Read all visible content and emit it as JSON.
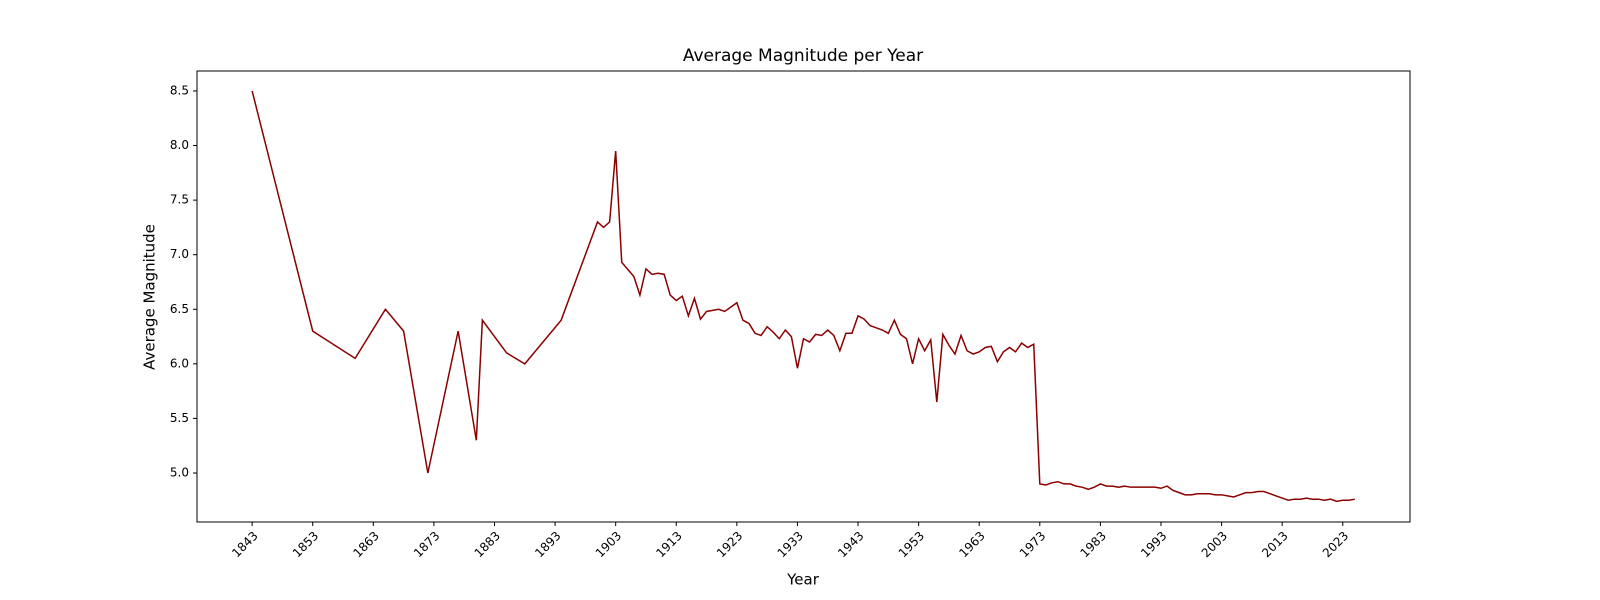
{
  "chart_data": {
    "type": "line",
    "title": "Average Magnitude per Year",
    "x_label": "Year",
    "y_label": "Average Magnitude",
    "x": [
      1843,
      1853,
      1860,
      1865,
      1868,
      1872,
      1877,
      1880,
      1881,
      1885,
      1888,
      1894,
      1900,
      1901,
      1902,
      1903,
      1904,
      1906,
      1907,
      1908,
      1909,
      1910,
      1911,
      1912,
      1913,
      1914,
      1915,
      1916,
      1917,
      1918,
      1919,
      1920,
      1921,
      1922,
      1923,
      1924,
      1925,
      1926,
      1927,
      1928,
      1929,
      1930,
      1931,
      1932,
      1933,
      1934,
      1935,
      1936,
      1937,
      1938,
      1939,
      1940,
      1941,
      1942,
      1943,
      1944,
      1945,
      1946,
      1947,
      1948,
      1949,
      1950,
      1951,
      1952,
      1953,
      1954,
      1955,
      1956,
      1957,
      1958,
      1959,
      1960,
      1961,
      1962,
      1963,
      1964,
      1965,
      1966,
      1967,
      1968,
      1969,
      1970,
      1971,
      1972,
      1973,
      1974,
      1975,
      1976,
      1977,
      1978,
      1979,
      1980,
      1981,
      1982,
      1983,
      1984,
      1985,
      1986,
      1987,
      1988,
      1989,
      1990,
      1991,
      1992,
      1993,
      1994,
      1995,
      1996,
      1997,
      1998,
      1999,
      2000,
      2001,
      2002,
      2003,
      2004,
      2005,
      2006,
      2007,
      2008,
      2009,
      2010,
      2011,
      2012,
      2013,
      2014,
      2015,
      2016,
      2017,
      2018,
      2019,
      2020,
      2021,
      2022,
      2023,
      2024,
      2025
    ],
    "series": [
      {
        "name": "Average Magnitude",
        "color": "#8b0000",
        "values": [
          8.5,
          6.3,
          6.05,
          6.5,
          6.3,
          5.0,
          6.3,
          5.3,
          6.4,
          6.1,
          6.0,
          6.4,
          7.3,
          7.25,
          7.3,
          7.95,
          6.93,
          6.8,
          6.63,
          6.87,
          6.82,
          6.83,
          6.82,
          6.63,
          6.58,
          6.62,
          6.44,
          6.6,
          6.41,
          6.48,
          6.49,
          6.5,
          6.48,
          6.52,
          6.56,
          6.4,
          6.37,
          6.28,
          6.26,
          6.34,
          6.29,
          6.23,
          6.31,
          6.25,
          5.96,
          6.23,
          6.2,
          6.27,
          6.26,
          6.31,
          6.26,
          6.12,
          6.28,
          6.28,
          6.44,
          6.41,
          6.35,
          6.33,
          6.31,
          6.28,
          6.4,
          6.27,
          6.23,
          6.0,
          6.23,
          6.12,
          6.22,
          5.65,
          6.27,
          6.17,
          6.09,
          6.26,
          6.12,
          6.09,
          6.11,
          6.15,
          6.16,
          6.02,
          6.11,
          6.15,
          6.11,
          6.19,
          6.15,
          6.18,
          4.9,
          4.89,
          4.91,
          4.92,
          4.9,
          4.9,
          4.88,
          4.87,
          4.85,
          4.87,
          4.9,
          4.88,
          4.88,
          4.87,
          4.88,
          4.87,
          4.87,
          4.87,
          4.87,
          4.87,
          4.86,
          4.88,
          4.84,
          4.82,
          4.8,
          4.8,
          4.81,
          4.81,
          4.81,
          4.8,
          4.8,
          4.79,
          4.78,
          4.8,
          4.82,
          4.82,
          4.83,
          4.83,
          4.81,
          4.79,
          4.77,
          4.75,
          4.76,
          4.76,
          4.77,
          4.76,
          4.76,
          4.75,
          4.76,
          4.74,
          4.75,
          4.75,
          4.76
        ]
      }
    ],
    "xlim": [
      1833.9,
      2034.1
    ],
    "ylim": [
      4.551,
      8.683
    ],
    "xticks": [
      1843,
      1853,
      1863,
      1873,
      1883,
      1893,
      1903,
      1913,
      1923,
      1933,
      1943,
      1953,
      1963,
      1973,
      1983,
      1993,
      2003,
      2013,
      2023
    ],
    "yticks": [
      {
        "value": 5,
        "label": "5.0"
      },
      5.5,
      {
        "value": 6,
        "label": "6.0"
      },
      6.5,
      {
        "value": 7,
        "label": "7.0"
      },
      7.5,
      {
        "value": 8,
        "label": "8.0"
      },
      8.5
    ]
  }
}
